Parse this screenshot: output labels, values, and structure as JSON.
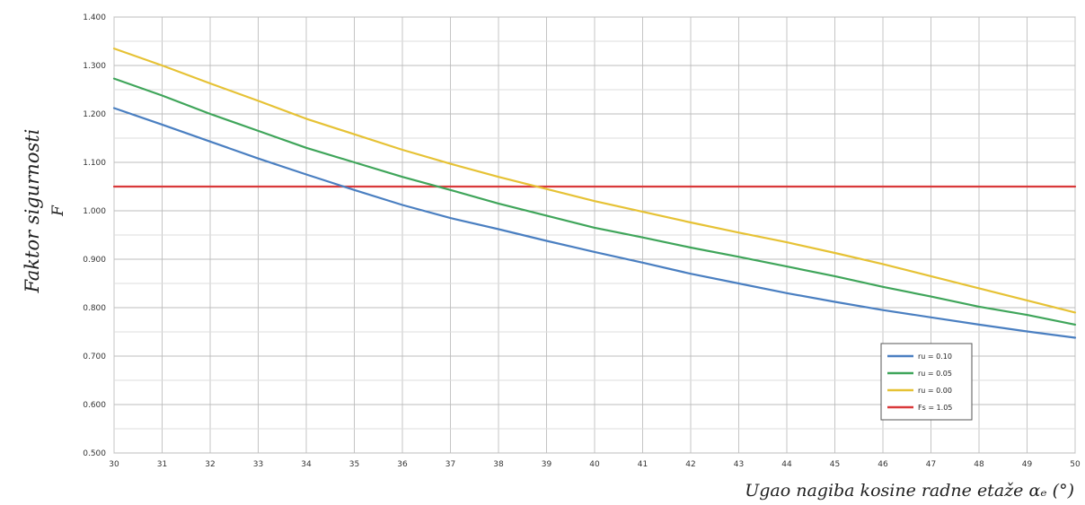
{
  "chart_data": {
    "type": "line",
    "ylabel": "Faktor sigurnosti",
    "ylabel_symbol": "F",
    "xlabel": "Ugao nagiba kosine radne etaže αₑ (°)",
    "xlim": [
      30,
      50
    ],
    "ylim": [
      0.5,
      1.4
    ],
    "x_ticks": [
      "30",
      "31",
      "32",
      "33",
      "34",
      "35",
      "36",
      "37",
      "38",
      "39",
      "40",
      "41",
      "42",
      "43",
      "44",
      "45",
      "46",
      "47",
      "48",
      "49",
      "50"
    ],
    "y_ticks": [
      "0.500",
      "0.600",
      "0.700",
      "0.800",
      "0.900",
      "1.000",
      "1.100",
      "1.200",
      "1.300",
      "1.400"
    ],
    "grid": true,
    "legend_position": "bottom-right",
    "x": [
      30,
      31,
      32,
      33,
      34,
      35,
      36,
      37,
      38,
      39,
      40,
      41,
      42,
      43,
      44,
      45,
      46,
      47,
      48,
      49,
      50
    ],
    "series": [
      {
        "name": "ru = 0.10",
        "color": "#4a7fc1",
        "values": [
          1.212,
          1.178,
          1.143,
          1.108,
          1.075,
          1.043,
          1.012,
          0.985,
          0.962,
          0.938,
          0.915,
          0.893,
          0.87,
          0.85,
          0.83,
          0.812,
          0.795,
          0.78,
          0.765,
          0.751,
          0.738
        ]
      },
      {
        "name": "ru = 0.05",
        "color": "#3fa55a",
        "values": [
          1.273,
          1.238,
          1.2,
          1.165,
          1.13,
          1.1,
          1.07,
          1.043,
          1.015,
          0.99,
          0.965,
          0.945,
          0.924,
          0.905,
          0.885,
          0.865,
          0.843,
          0.823,
          0.802,
          0.785,
          0.765
        ]
      },
      {
        "name": "ru = 0.00",
        "color": "#e6c235",
        "values": [
          1.335,
          1.3,
          1.263,
          1.227,
          1.19,
          1.158,
          1.126,
          1.097,
          1.07,
          1.045,
          1.02,
          0.998,
          0.976,
          0.955,
          0.935,
          0.913,
          0.89,
          0.865,
          0.84,
          0.815,
          0.79
        ]
      },
      {
        "name": "Fs = 1.05",
        "color": "#d9393a",
        "values": [
          1.05,
          1.05,
          1.05,
          1.05,
          1.05,
          1.05,
          1.05,
          1.05,
          1.05,
          1.05,
          1.05,
          1.05,
          1.05,
          1.05,
          1.05,
          1.05,
          1.05,
          1.05,
          1.05,
          1.05,
          1.05
        ]
      }
    ]
  }
}
